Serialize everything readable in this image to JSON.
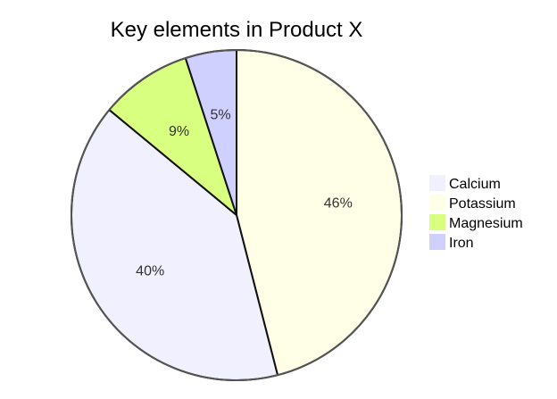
{
  "chart_data": {
    "type": "pie",
    "title": "Key elements in Product X",
    "legend_position": "right",
    "slices": [
      {
        "label": "Calcium",
        "value": 40,
        "pct_label": "40%",
        "color": "#f0f0ff"
      },
      {
        "label": "Potassium",
        "value": 46,
        "pct_label": "46%",
        "color": "#ffffe8"
      },
      {
        "label": "Magnesium",
        "value": 9,
        "pct_label": "9%",
        "color": "#d8ff80"
      },
      {
        "label": "Iron",
        "value": 5,
        "pct_label": "5%",
        "color": "#d0d0ff"
      }
    ],
    "draw_order": [
      "Potassium",
      "Calcium",
      "Magnesium",
      "Iron"
    ]
  }
}
